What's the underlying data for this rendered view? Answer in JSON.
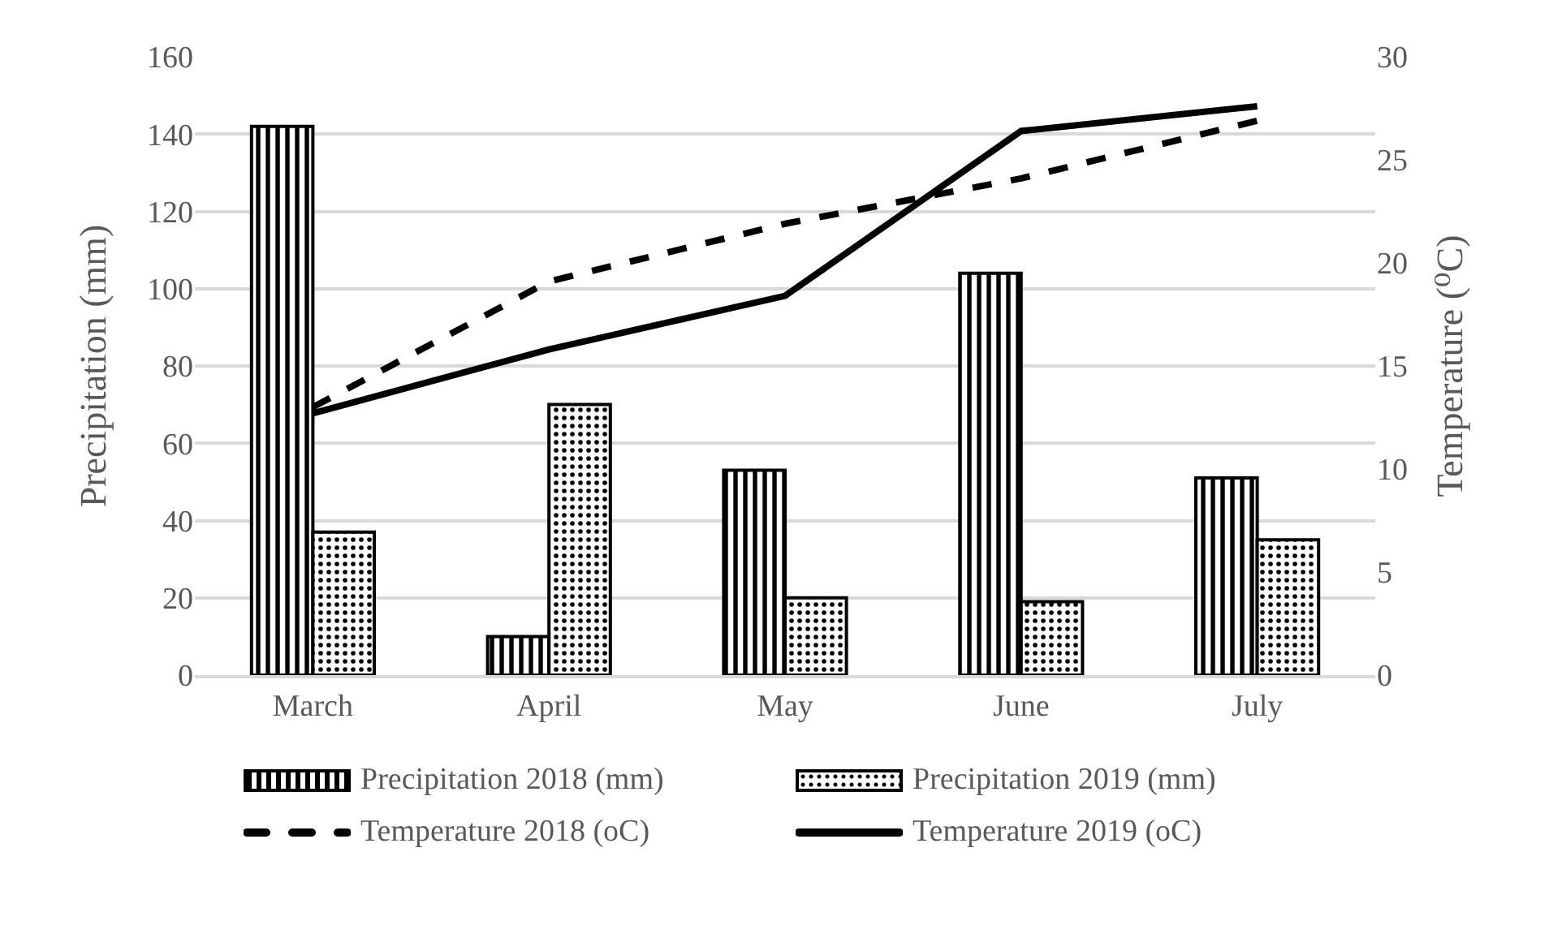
{
  "chart_data": {
    "type": "bar",
    "categories": [
      "March",
      "April",
      "May",
      "June",
      "July"
    ],
    "ylabel": "Precipitation (mm)",
    "y2label": "Temperature (⁰C)",
    "ylim": [
      0,
      160
    ],
    "yticks": [
      0,
      20,
      40,
      60,
      80,
      100,
      120,
      140,
      160
    ],
    "y2lim": [
      0,
      30
    ],
    "y2ticks": [
      0,
      5,
      10,
      15,
      20,
      25,
      30
    ],
    "grid": "y",
    "legend": "bottom",
    "marker": "none",
    "series": [
      {
        "name": "Precipitation 2018 (mm)",
        "color": "#000000",
        "values": [
          142,
          10,
          53,
          104,
          51
        ]
      },
      {
        "name": "Precipitation 2019 (mm)",
        "color": "#000000",
        "values": [
          37,
          70,
          20,
          19,
          35
        ]
      },
      {
        "name": "Temperature 2018 (oC)",
        "type": "line",
        "axis": "y2",
        "line_style": "dashed",
        "color": "#000000",
        "values": [
          13.0,
          19.1,
          21.9,
          24.1,
          26.9
        ]
      },
      {
        "name": "Temperature 2019 (oC)",
        "type": "line",
        "axis": "y2",
        "line_style": "solid",
        "color": "#000000",
        "values": [
          12.7,
          15.8,
          18.4,
          26.4,
          27.6
        ]
      }
    ]
  }
}
